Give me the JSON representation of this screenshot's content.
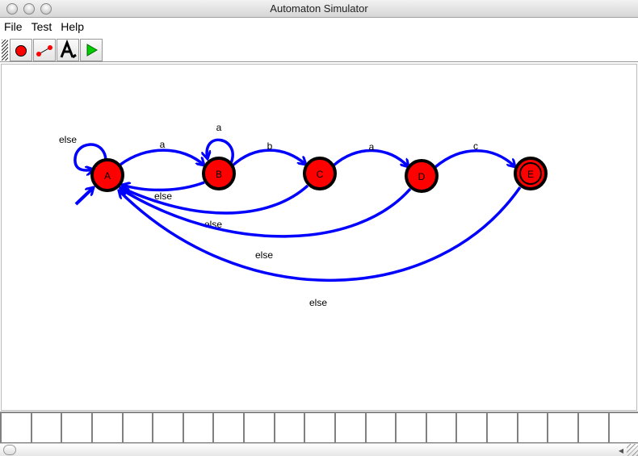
{
  "window": {
    "title": "Automaton Simulator"
  },
  "menu": [
    "File",
    "Test",
    "Help"
  ],
  "toolbar": [
    {
      "icon": "state-tool-icon"
    },
    {
      "icon": "transition-tool-icon"
    },
    {
      "icon": "label-tool-icon"
    },
    {
      "icon": "run-icon"
    }
  ],
  "colors": {
    "state": "#ff0000",
    "edge": "#0000ff"
  },
  "automaton": {
    "states": [
      {
        "name": "A",
        "initial": true
      },
      {
        "name": "B"
      },
      {
        "name": "C"
      },
      {
        "name": "D"
      },
      {
        "name": "E",
        "accepting": true
      }
    ],
    "transitions": [
      {
        "from": "A",
        "to": "A",
        "label": "else"
      },
      {
        "from": "A",
        "to": "B",
        "label": "a"
      },
      {
        "from": "B",
        "to": "B",
        "label": "a"
      },
      {
        "from": "B",
        "to": "C",
        "label": "b"
      },
      {
        "from": "C",
        "to": "D",
        "label": "a"
      },
      {
        "from": "D",
        "to": "E",
        "label": "c"
      },
      {
        "from": "B",
        "to": "A",
        "label": "else"
      },
      {
        "from": "C",
        "to": "A",
        "label": "else"
      },
      {
        "from": "D",
        "to": "A",
        "label": "else"
      },
      {
        "from": "E",
        "to": "A",
        "label": "else"
      }
    ]
  },
  "tape": {
    "cells": [
      "",
      "",
      "",
      "",
      "",
      "",
      "",
      "",
      "",
      "",
      "",
      "",
      "",
      "",
      "",
      "",
      "",
      "",
      "",
      "",
      ""
    ]
  }
}
